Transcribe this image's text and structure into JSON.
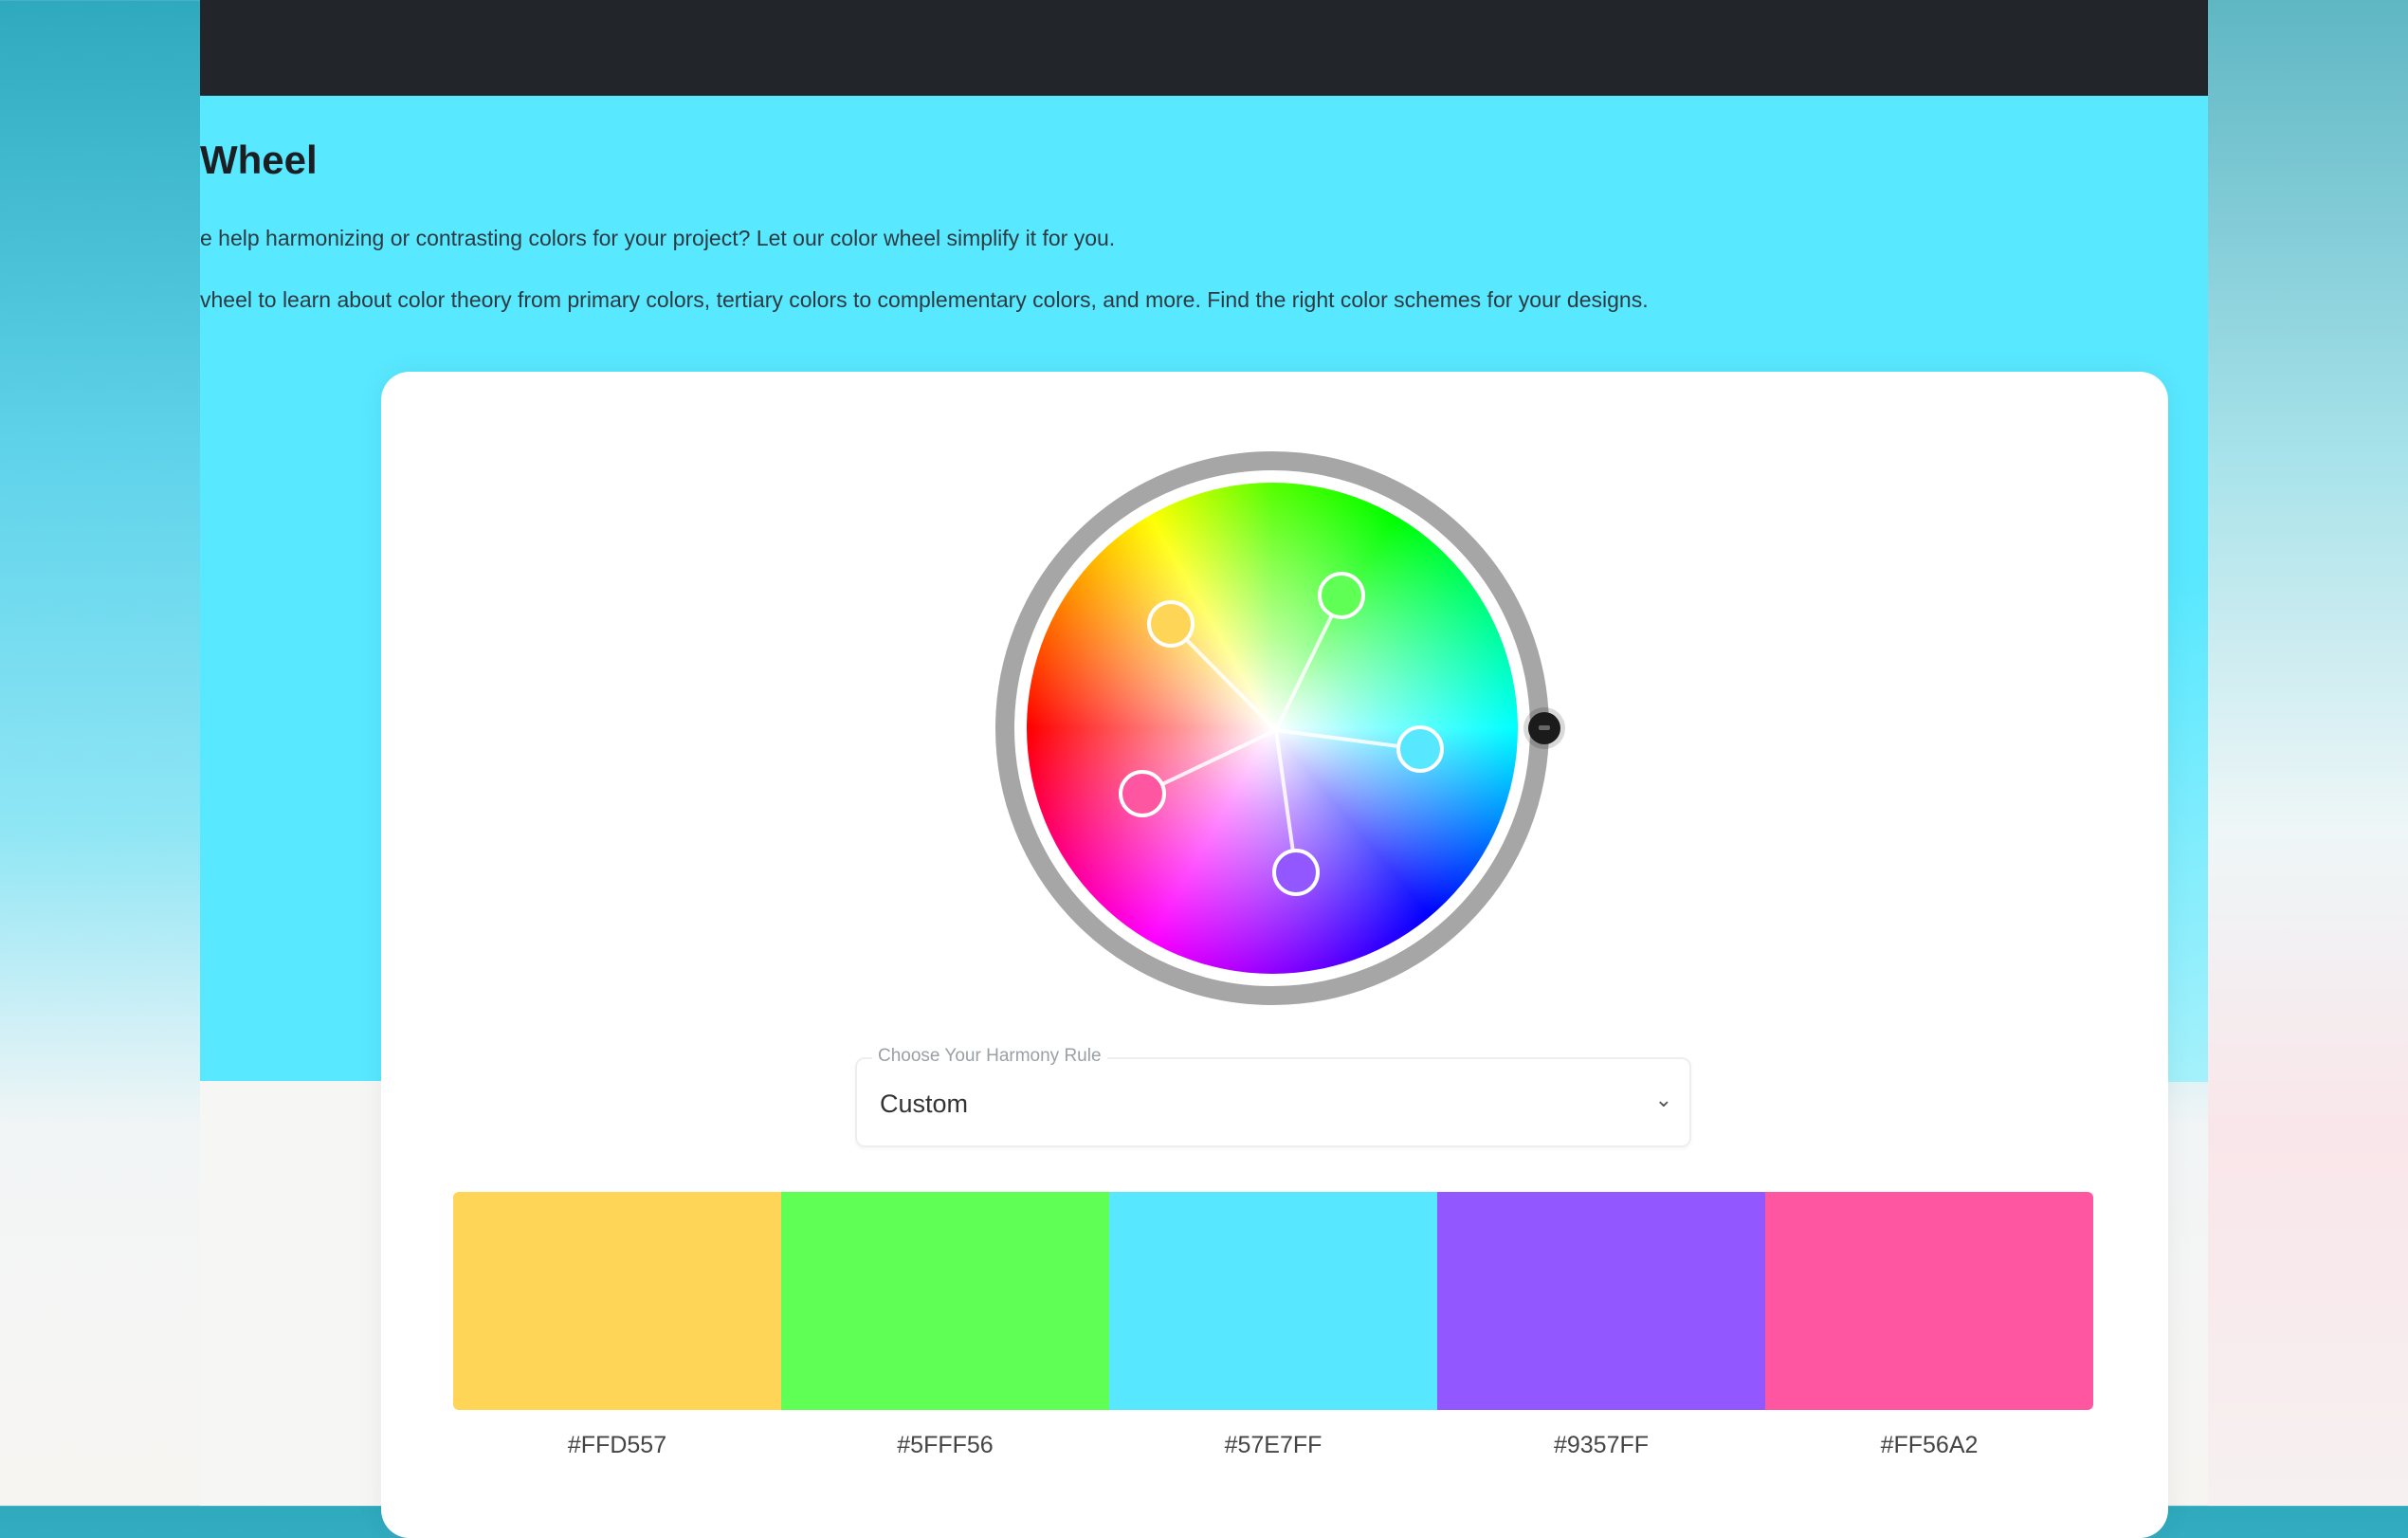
{
  "page": {
    "title": "Wheel",
    "intro_1": "e help harmonizing or contrasting colors for your project? Let our color wheel simplify it for you.",
    "intro_2": "vheel to learn about color theory from primary colors, tertiary colors to complementary colors, and more. Find the right color schemes for your designs."
  },
  "wheel": {
    "handle_colors": [
      "#FFD557",
      "#5FFF56",
      "#57E7FF",
      "#9357FF",
      "#FF56A2"
    ]
  },
  "harmony": {
    "label": "Choose Your Harmony Rule",
    "value": "Custom"
  },
  "palette": [
    {
      "hex": "#FFD557",
      "color": "#FFD557"
    },
    {
      "hex": "#5FFF56",
      "color": "#5FFF56"
    },
    {
      "hex": "#57E7FF",
      "color": "#57E7FF"
    },
    {
      "hex": "#9357FF",
      "color": "#9357FF"
    },
    {
      "hex": "#FF56A2",
      "color": "#FF56A2"
    }
  ]
}
